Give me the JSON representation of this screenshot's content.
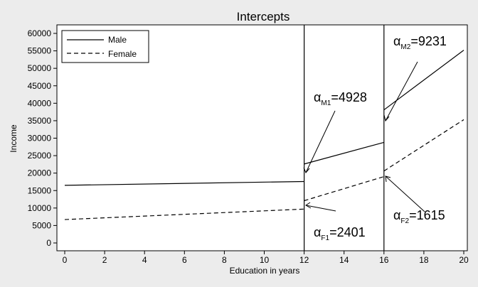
{
  "chart_data": {
    "type": "line",
    "title": "Intercepts",
    "xlabel": "Education in years",
    "ylabel": "Income",
    "xlim": [
      0,
      20
    ],
    "ylim": [
      0,
      60000
    ],
    "x_ticks": [
      "0",
      "2",
      "4",
      "6",
      "8",
      "10",
      "12",
      "14",
      "16",
      "18",
      "20"
    ],
    "y_ticks": [
      "0",
      "5000",
      "10000",
      "15000",
      "20000",
      "25000",
      "30000",
      "35000",
      "40000",
      "45000",
      "50000",
      "55000",
      "60000"
    ],
    "grid": false,
    "legend_position": "top-left",
    "series": [
      {
        "name": "Male",
        "style": "solid",
        "segments": [
          [
            [
              0,
              16500
            ],
            [
              12,
              17600
            ]
          ],
          [
            [
              12,
              22600
            ],
            [
              16,
              28800
            ]
          ],
          [
            [
              16,
              38100
            ],
            [
              20,
              55200
            ]
          ]
        ]
      },
      {
        "name": "Female",
        "style": "dashed",
        "segments": [
          [
            [
              0,
              6700
            ],
            [
              12,
              9700
            ]
          ],
          [
            [
              12,
              12100
            ],
            [
              16,
              19000
            ]
          ],
          [
            [
              16,
              20600
            ],
            [
              20,
              35300
            ]
          ]
        ]
      }
    ],
    "vlines": [
      12,
      16
    ],
    "annotations": [
      {
        "symbol": "α",
        "sub": "M1",
        "value": "=4928"
      },
      {
        "symbol": "α",
        "sub": "M2",
        "value": "=9231"
      },
      {
        "symbol": "α",
        "sub": "F1",
        "value": "=2401"
      },
      {
        "symbol": "α",
        "sub": "F2",
        "value": "=1615"
      }
    ]
  }
}
